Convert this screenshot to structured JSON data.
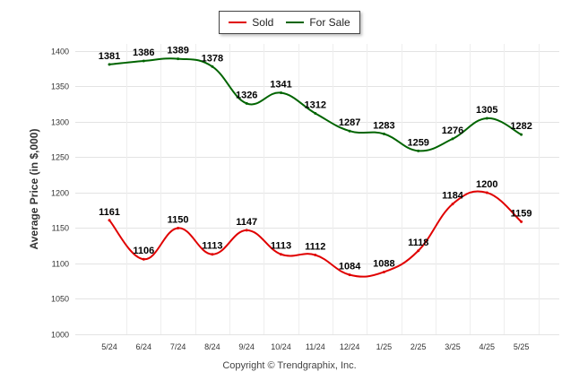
{
  "chart_data": {
    "type": "line",
    "title": "",
    "xlabel": "",
    "ylabel": "Average Price (in $,000)",
    "categories": [
      "5/24",
      "6/24",
      "7/24",
      "8/24",
      "9/24",
      "10/24",
      "11/24",
      "12/24",
      "1/25",
      "2/25",
      "3/25",
      "4/25",
      "5/25"
    ],
    "yticks": [
      1000,
      1050,
      1100,
      1150,
      1200,
      1250,
      1300,
      1350,
      1400
    ],
    "ylim": [
      1000,
      1410
    ],
    "grid": true,
    "legend_position": "top",
    "series": [
      {
        "name": "Sold",
        "color": "#e00000",
        "values": [
          1161,
          1106,
          1150,
          1113,
          1147,
          1113,
          1112,
          1084,
          1088,
          1118,
          1184,
          1200,
          1159
        ]
      },
      {
        "name": "For Sale",
        "color": "#006400",
        "values": [
          1381,
          1386,
          1389,
          1378,
          1326,
          1341,
          1312,
          1287,
          1283,
          1259,
          1276,
          1305,
          1282
        ]
      }
    ]
  },
  "footer": {
    "copyright": "Copyright © Trendgraphix, Inc."
  }
}
